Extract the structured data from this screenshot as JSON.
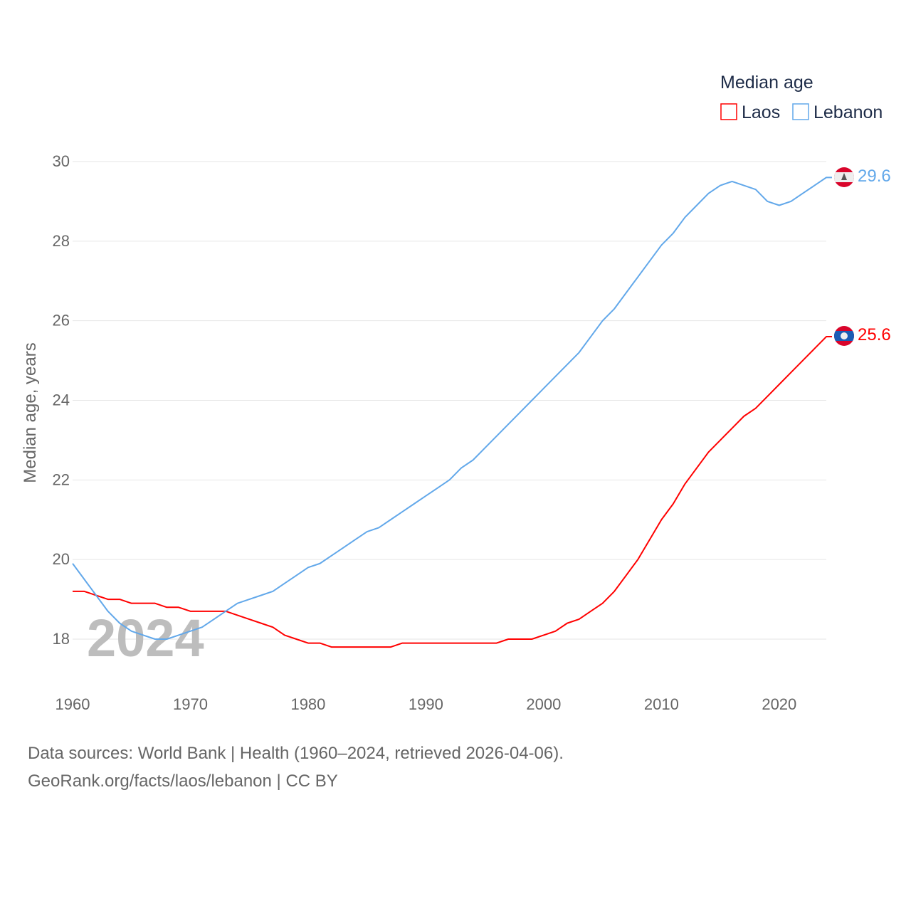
{
  "chart_data": {
    "type": "line",
    "title": "",
    "xlabel": "",
    "ylabel": "Median age, years",
    "xlim": [
      1960,
      2024
    ],
    "ylim": [
      17,
      30
    ],
    "yticks": [
      18,
      20,
      22,
      24,
      26,
      28,
      30
    ],
    "xticks": [
      1960,
      1970,
      1980,
      1990,
      2000,
      2010,
      2020
    ],
    "grid": true,
    "legend_title": "Median age",
    "legend_position": "top-right",
    "year_overlay": "2024",
    "x": [
      1960,
      1961,
      1962,
      1963,
      1964,
      1965,
      1966,
      1967,
      1968,
      1969,
      1970,
      1971,
      1972,
      1973,
      1974,
      1975,
      1976,
      1977,
      1978,
      1979,
      1980,
      1981,
      1982,
      1983,
      1984,
      1985,
      1986,
      1987,
      1988,
      1989,
      1990,
      1991,
      1992,
      1993,
      1994,
      1995,
      1996,
      1997,
      1998,
      1999,
      2000,
      2001,
      2002,
      2003,
      2004,
      2005,
      2006,
      2007,
      2008,
      2009,
      2010,
      2011,
      2012,
      2013,
      2014,
      2015,
      2016,
      2017,
      2018,
      2019,
      2020,
      2021,
      2022,
      2023,
      2024
    ],
    "series": [
      {
        "name": "Laos",
        "color": "#ff0000",
        "end_label": "25.6",
        "flag": "laos-flag",
        "values": [
          19.2,
          19.2,
          19.1,
          19.0,
          19.0,
          18.9,
          18.9,
          18.9,
          18.8,
          18.8,
          18.7,
          18.7,
          18.7,
          18.7,
          18.6,
          18.5,
          18.4,
          18.3,
          18.1,
          18.0,
          17.9,
          17.9,
          17.8,
          17.8,
          17.8,
          17.8,
          17.8,
          17.8,
          17.9,
          17.9,
          17.9,
          17.9,
          17.9,
          17.9,
          17.9,
          17.9,
          17.9,
          18.0,
          18.0,
          18.0,
          18.1,
          18.2,
          18.4,
          18.5,
          18.7,
          18.9,
          19.2,
          19.6,
          20.0,
          20.5,
          21.0,
          21.4,
          21.9,
          22.3,
          22.7,
          23.0,
          23.3,
          23.6,
          23.8,
          24.1,
          24.4,
          24.7,
          25.0,
          25.3,
          25.6
        ]
      },
      {
        "name": "Lebanon",
        "color": "#62a8ea",
        "end_label": "29.6",
        "flag": "lebanon-flag",
        "values": [
          19.9,
          19.5,
          19.1,
          18.7,
          18.4,
          18.2,
          18.1,
          18.0,
          18.0,
          18.1,
          18.2,
          18.3,
          18.5,
          18.7,
          18.9,
          19.0,
          19.1,
          19.2,
          19.4,
          19.6,
          19.8,
          19.9,
          20.1,
          20.3,
          20.5,
          20.7,
          20.8,
          21.0,
          21.2,
          21.4,
          21.6,
          21.8,
          22.0,
          22.3,
          22.5,
          22.8,
          23.1,
          23.4,
          23.7,
          24.0,
          24.3,
          24.6,
          24.9,
          25.2,
          25.6,
          26.0,
          26.3,
          26.7,
          27.1,
          27.5,
          27.9,
          28.2,
          28.6,
          28.9,
          29.2,
          29.4,
          29.5,
          29.4,
          29.3,
          29.0,
          28.9,
          29.0,
          29.2,
          29.4,
          29.6
        ]
      }
    ]
  },
  "footer": {
    "line1": "Data sources: World Bank | Health (1960–2024, retrieved 2026-04-06).",
    "line2": "GeoRank.org/facts/laos/lebanon | CC BY"
  }
}
